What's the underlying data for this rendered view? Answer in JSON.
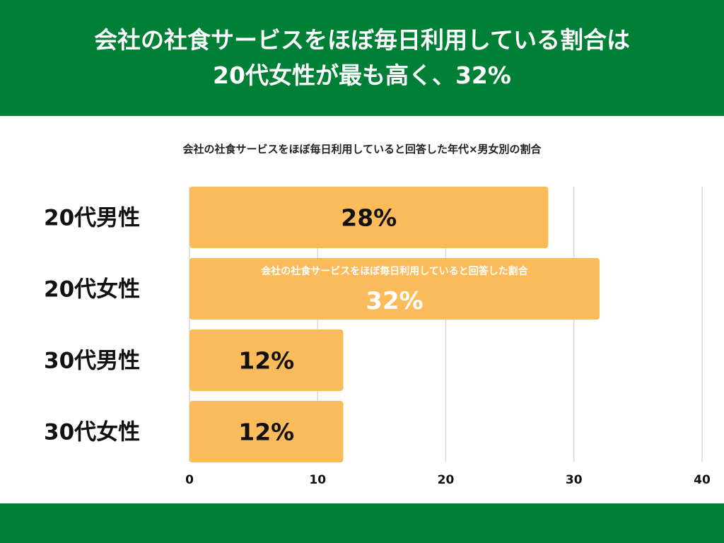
{
  "header": {
    "title_line1": "会社の社食サービスをほぼ毎日利用している割合は",
    "title_line2": "20代女性が最も高く、32%"
  },
  "chart_data": {
    "type": "bar",
    "orientation": "horizontal",
    "title": "会社の社食サービスをほぼ毎日利用していると回答した年代×男女別の割合",
    "categories": [
      "20代男性",
      "20代女性",
      "30代男性",
      "30代女性"
    ],
    "values": [
      28,
      32,
      12,
      12
    ],
    "value_labels": [
      "28%",
      "32%",
      "12%",
      "12%"
    ],
    "xlim": [
      0,
      40
    ],
    "xticks": [
      0,
      10,
      20,
      30,
      40
    ],
    "grid": true,
    "highlight_index": 1,
    "annotation": "会社の社食サービスをほぼ毎日利用していると回答した割合",
    "bar_color": "#fcbb5a",
    "grid_color": "#d9d9d9"
  },
  "colors": {
    "brand_green": "#007f36"
  }
}
